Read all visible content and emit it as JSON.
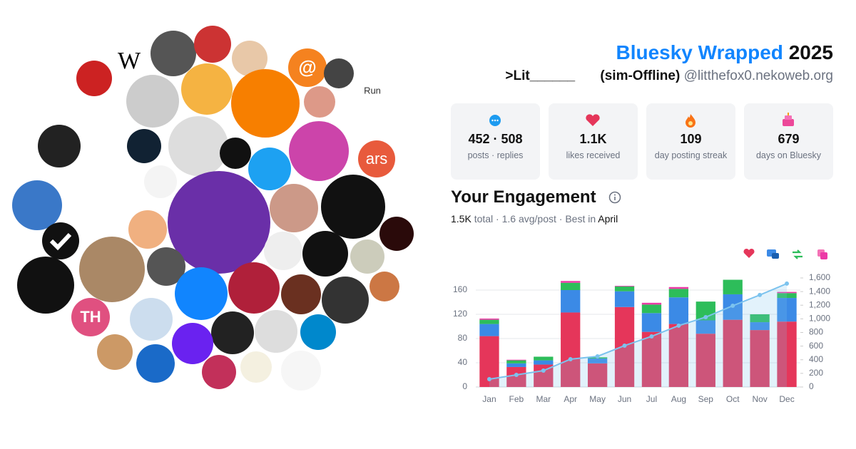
{
  "header": {
    "title": "Bluesky Wrapped",
    "year": "2025",
    "display_name": ">Lit______",
    "status": "(sim-Offline)",
    "handle": "@litthefox0.nekoweb.org"
  },
  "avatar_texts": [
    "W",
    "Run",
    "@",
    "ars",
    "TH"
  ],
  "stats": [
    {
      "value": "452 · 508",
      "label": "posts · replies"
    },
    {
      "value": "1.1K",
      "label": "likes received"
    },
    {
      "value": "109",
      "label": "day posting streak"
    },
    {
      "value": "679",
      "label": "days on Bluesky"
    }
  ],
  "engagement": {
    "title": "Your Engagement",
    "summary": [
      "1.5K",
      "total · 1.6 avg/post · Best in",
      "April"
    ]
  },
  "chart_data": {
    "type": "bar",
    "stacked": true,
    "grid": true,
    "categories": [
      "Jan",
      "Feb",
      "Mar",
      "Apr",
      "May",
      "Jun",
      "Jul",
      "Aug",
      "Sep",
      "Oct",
      "Nov",
      "Dec"
    ],
    "series": [
      {
        "color": "#e5365a",
        "values": [
          84,
          33,
          37,
          123,
          39,
          132,
          91,
          104,
          88,
          111,
          94,
          108
        ]
      },
      {
        "color": "#3b8ae6",
        "values": [
          20,
          6,
          7,
          37,
          8,
          26,
          31,
          44,
          22,
          42,
          13,
          39
        ]
      },
      {
        "color": "#2dbd5a",
        "values": [
          7,
          5,
          6,
          12,
          2,
          8,
          14,
          14,
          31,
          24,
          13,
          8
        ]
      },
      {
        "color": "#ec3aa6",
        "values": [
          2,
          1,
          0,
          3,
          0,
          1,
          3,
          3,
          0,
          0,
          0,
          2
        ]
      },
      {
        "color": "#7cc3ee",
        "axis": "y2",
        "type": "area",
        "values": [
          115,
          178,
          240,
          408,
          450,
          607,
          743,
          900,
          1025,
          1192,
          1350,
          1517
        ]
      }
    ],
    "ylim": [
      0,
      180
    ],
    "yticks": [
      0,
      40,
      80,
      120,
      160
    ],
    "y2lim": [
      0,
      1600
    ],
    "y2ticks": [
      0,
      200,
      400,
      600,
      800,
      {
        "value": 1000,
        "label": "1,000"
      },
      {
        "value": 1200,
        "label": "1,200"
      },
      {
        "value": 1400,
        "label": "1,400"
      },
      {
        "value": 1600,
        "label": "1,600"
      }
    ]
  }
}
